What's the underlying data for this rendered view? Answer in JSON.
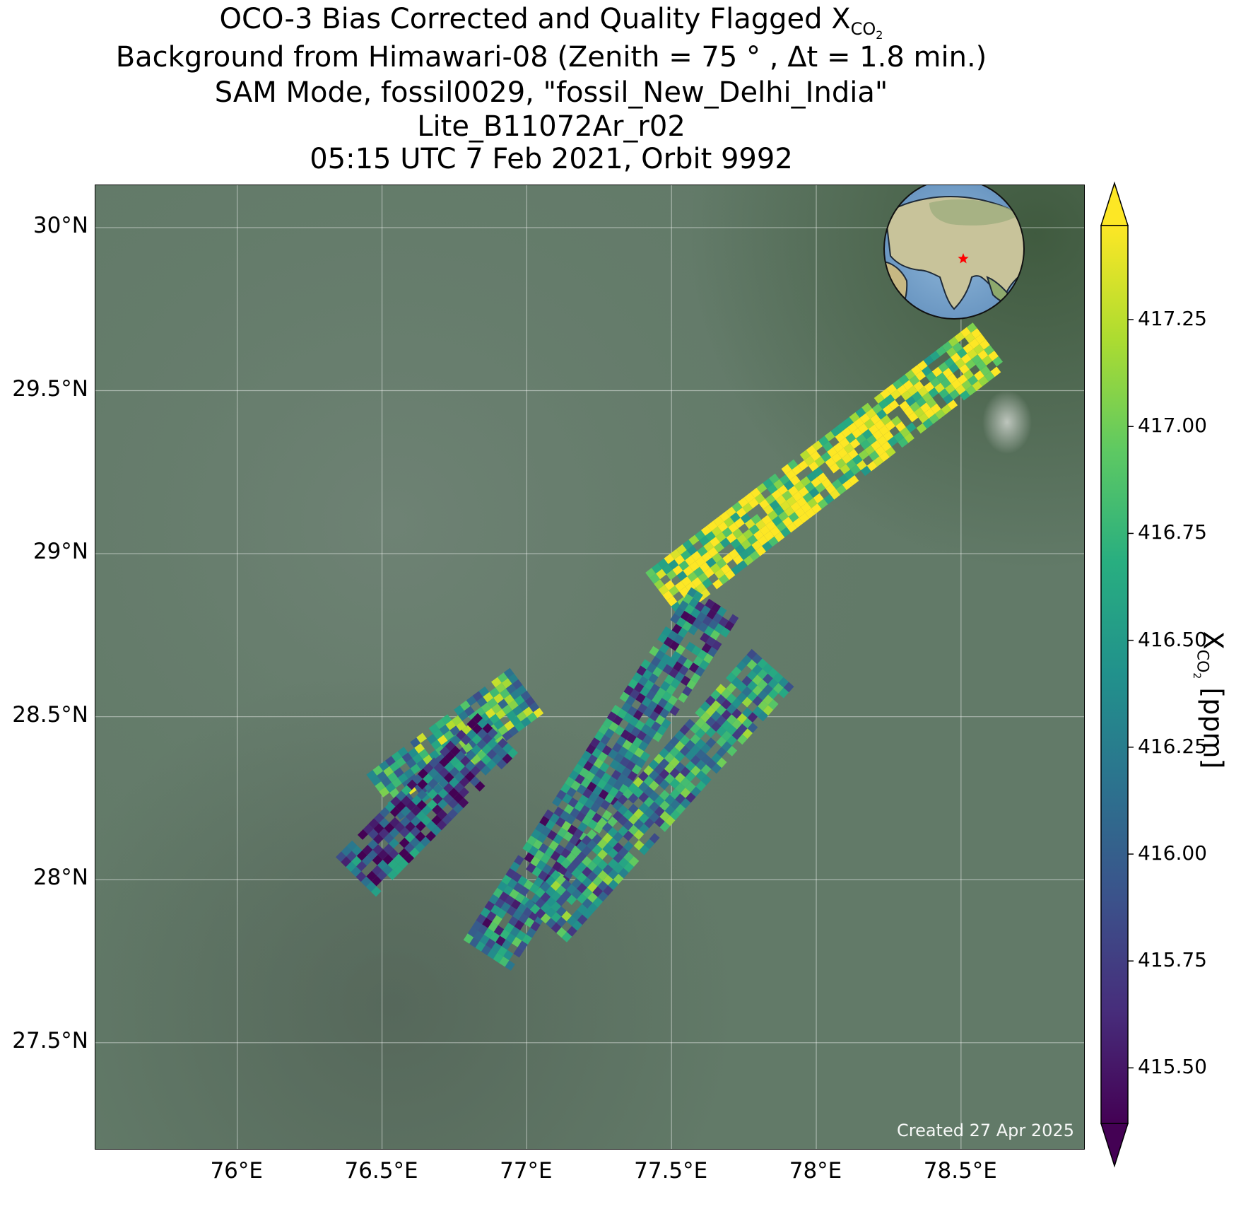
{
  "title": {
    "line1_prefix": "OCO-3 Bias Corrected and Quality Flagged X",
    "line1_sub": "CO",
    "line1_subsub": "2",
    "line2": "Background from Himawari-08 (Zenith = 75 ° , Δt =  1.8 min.)",
    "line3": "SAM Mode, fossil0029, \"fossil_New_Delhi_India\"",
    "line4": "Lite_B11072Ar_r02",
    "line5": "05:15 UTC 7 Feb 2021, Orbit 9992"
  },
  "map": {
    "lon_ticks": [
      "76°E",
      "76.5°E",
      "77°E",
      "77.5°E",
      "78°E",
      "78.5°E"
    ],
    "lat_ticks": [
      "30°N",
      "29.5°N",
      "29°N",
      "28.5°N",
      "28°N",
      "27.5°N"
    ],
    "lon_values": [
      76.0,
      76.5,
      77.0,
      77.5,
      78.0,
      78.5
    ],
    "lat_values": [
      30.0,
      29.5,
      29.0,
      28.5,
      28.0,
      27.5
    ],
    "lon_range": [
      75.51,
      78.93
    ],
    "lat_range": [
      27.17,
      30.13
    ],
    "target_marker": "red-star",
    "created": "Created 27 Apr 2025",
    "background_color": "#627a68",
    "marker_color": "#ff0000"
  },
  "colorbar": {
    "label_prefix": "X",
    "label_sub": "CO",
    "label_subsub": "2",
    "label_suffix": " [ppm]",
    "min": 415.37,
    "max": 417.47,
    "ticks": [
      "417.25",
      "417.00",
      "416.75",
      "416.50",
      "416.25",
      "416.00",
      "415.75",
      "415.50"
    ],
    "tick_values": [
      417.25,
      417.0,
      416.75,
      416.5,
      416.25,
      416.0,
      415.75,
      415.5
    ],
    "colormap": "viridis",
    "extend": "both"
  },
  "chart_data": {
    "type": "heatmap",
    "value_label": "XCO2 [ppm]",
    "value_range": [
      415.37,
      417.47
    ],
    "sounding_swaths": [
      {
        "name": "",
        "lon_start": 78.6,
        "lat_start": 29.64,
        "lon_end": 77.45,
        "lat_end": 28.86,
        "mean": 417.25
      },
      {
        "name": "",
        "lon_start": 77.65,
        "lat_start": 28.85,
        "lon_end": 76.85,
        "lat_end": 27.75,
        "mean": 416.2
      },
      {
        "name": "",
        "lon_start": 77.85,
        "lat_start": 28.65,
        "lon_end": 77.05,
        "lat_end": 27.85,
        "mean": 416.4
      },
      {
        "name": "",
        "lon_start": 77.0,
        "lat_start": 28.58,
        "lon_end": 76.5,
        "lat_end": 28.25,
        "mean": 416.6
      },
      {
        "name": "",
        "lon_start": 76.9,
        "lat_start": 28.45,
        "lon_end": 76.4,
        "lat_end": 28.0,
        "mean": 415.9
      }
    ]
  }
}
